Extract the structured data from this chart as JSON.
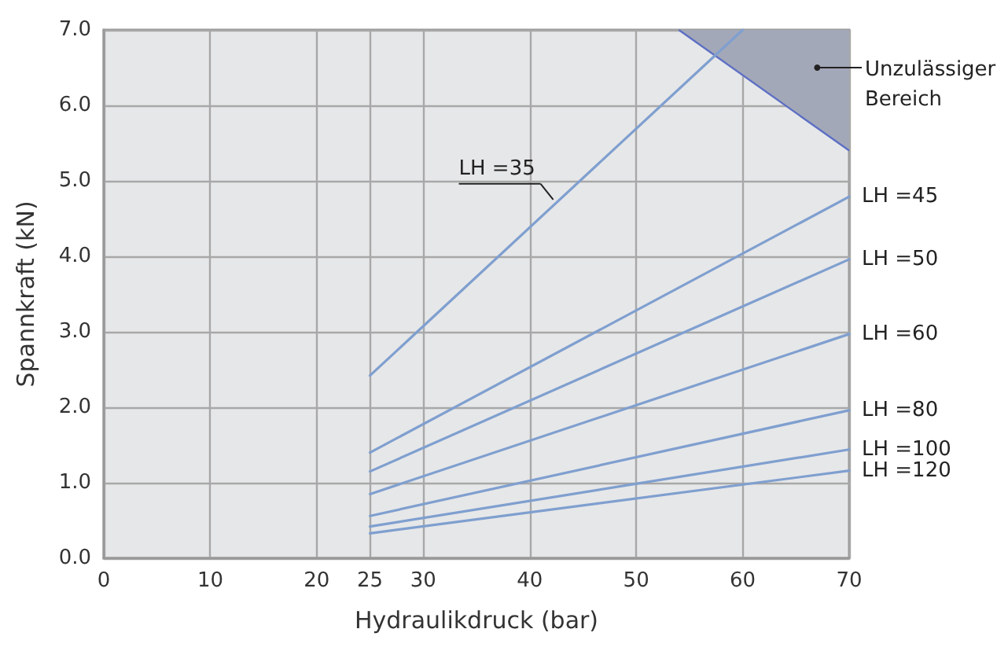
{
  "chart_data": {
    "type": "line",
    "xlabel": "Hydraulikdruck (bar)",
    "ylabel": "Spannkraft (kN)",
    "xlim": [
      0,
      70
    ],
    "xticks": [
      0,
      10,
      20,
      25,
      30,
      40,
      50,
      60,
      70
    ],
    "ylim": [
      0,
      7
    ],
    "yticks": [
      {
        "value": 0,
        "label": "0.0"
      },
      {
        "value": 1,
        "label": "1.0"
      },
      {
        "value": 2,
        "label": "2.0"
      },
      {
        "value": 3,
        "label": "3.0"
      },
      {
        "value": 4,
        "label": "4.0"
      },
      {
        "value": 5,
        "label": "5.0"
      },
      {
        "value": 6,
        "label": "6.0"
      },
      {
        "value": 7,
        "label": "7.0"
      }
    ],
    "grid": true,
    "legend": false,
    "marker": "none",
    "line_style": "solid",
    "series": [
      {
        "name": "LH =35",
        "color": "#7f9fcf",
        "x": [
          25,
          60
        ],
        "values": [
          2.42,
          7.0
        ]
      },
      {
        "name": "LH =45",
        "color": "#7f9fcf",
        "x": [
          25,
          70
        ],
        "values": [
          1.4,
          4.79
        ]
      },
      {
        "name": "LH =50",
        "color": "#7f9fcf",
        "x": [
          25,
          70
        ],
        "values": [
          1.15,
          3.96
        ]
      },
      {
        "name": "LH =60",
        "color": "#7f9fcf",
        "x": [
          25,
          70
        ],
        "values": [
          0.85,
          2.97
        ]
      },
      {
        "name": "LH =80",
        "color": "#7f9fcf",
        "x": [
          25,
          70
        ],
        "values": [
          0.56,
          1.96
        ]
      },
      {
        "name": "LH =100",
        "color": "#7f9fcf",
        "x": [
          25,
          70
        ],
        "values": [
          0.42,
          1.44
        ]
      },
      {
        "name": "LH =120",
        "color": "#7f9fcf",
        "x": [
          25,
          70
        ],
        "values": [
          0.33,
          1.16
        ]
      },
      {
        "type": "area",
        "color": "#a3a8b8",
        "x": [
          54,
          70
        ],
        "values": [
          7.0,
          5.4
        ]
      }
    ],
    "annotations": [
      {
        "text": "Unzulässiger Bereich",
        "x": 67,
        "y": 6.5
      }
    ]
  }
}
